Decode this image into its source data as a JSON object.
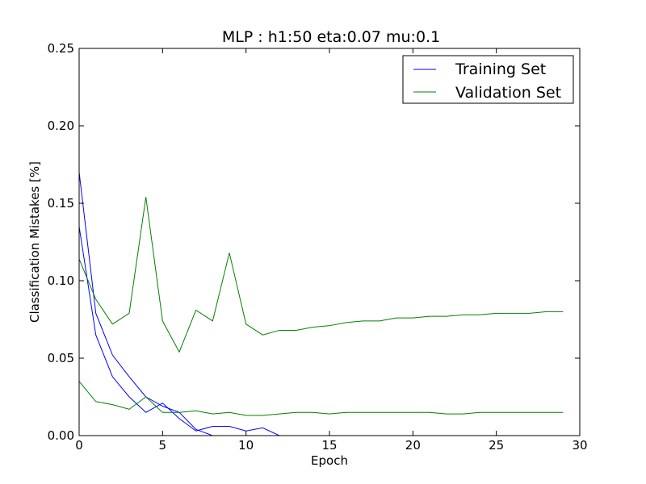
{
  "chart_data": {
    "type": "line",
    "title": "MLP : h1:50 eta:0.07 mu:0.1",
    "xlabel": "Epoch",
    "ylabel": "Classification Mistakes [%]",
    "xlim": [
      0,
      30
    ],
    "ylim": [
      0,
      0.25
    ],
    "x_ticks": [
      "0",
      "5",
      "10",
      "15",
      "20",
      "25",
      "30"
    ],
    "y_ticks": [
      "0.00",
      "0.05",
      "0.10",
      "0.15",
      "0.20",
      "0.25"
    ],
    "grid": false,
    "legend_position": "top-right",
    "colors": {
      "training": "#0000ff",
      "validation": "#008000"
    },
    "x": [
      0,
      1,
      2,
      3,
      4,
      5,
      6,
      7,
      8,
      9,
      10,
      11,
      12,
      13,
      14,
      15,
      16,
      17,
      18,
      19,
      20,
      21,
      22,
      23,
      24,
      25,
      26,
      27,
      28,
      29
    ],
    "series": [
      {
        "name": "Training Set",
        "color_key": "training",
        "values": [
          0.17,
          0.079,
          0.052,
          0.038,
          0.025,
          0.019,
          0.015,
          0.004,
          0.0,
          0.0,
          0.0,
          0.0,
          0.0,
          0.0,
          0.0,
          0.0,
          0.0,
          0.0,
          0.0,
          0.0,
          0.0,
          0.0,
          0.0,
          0.0,
          0.0,
          0.0,
          0.0,
          0.0,
          0.0,
          0.0
        ]
      },
      {
        "name": "",
        "color_key": "training",
        "values": [
          0.135,
          0.065,
          0.038,
          0.025,
          0.015,
          0.021,
          0.011,
          0.003,
          0.006,
          0.006,
          0.003,
          0.005,
          0.0,
          0.0,
          0.0,
          0.0,
          0.0,
          0.0,
          0.0,
          0.0,
          0.0,
          0.0,
          0.0,
          0.0,
          0.0,
          0.0,
          0.0,
          0.0,
          0.0,
          0.0
        ]
      },
      {
        "name": "Validation Set",
        "color_key": "validation",
        "values": [
          0.114,
          0.088,
          0.072,
          0.079,
          0.154,
          0.074,
          0.054,
          0.081,
          0.074,
          0.118,
          0.072,
          0.065,
          0.068,
          0.068,
          0.07,
          0.071,
          0.073,
          0.074,
          0.074,
          0.076,
          0.076,
          0.077,
          0.077,
          0.078,
          0.078,
          0.079,
          0.079,
          0.079,
          0.08,
          0.08
        ]
      },
      {
        "name": "",
        "color_key": "validation",
        "values": [
          0.035,
          0.022,
          0.02,
          0.017,
          0.025,
          0.015,
          0.015,
          0.016,
          0.014,
          0.015,
          0.013,
          0.013,
          0.014,
          0.015,
          0.015,
          0.014,
          0.015,
          0.015,
          0.015,
          0.015,
          0.015,
          0.015,
          0.014,
          0.014,
          0.015,
          0.015,
          0.015,
          0.015,
          0.015,
          0.015
        ]
      }
    ]
  }
}
